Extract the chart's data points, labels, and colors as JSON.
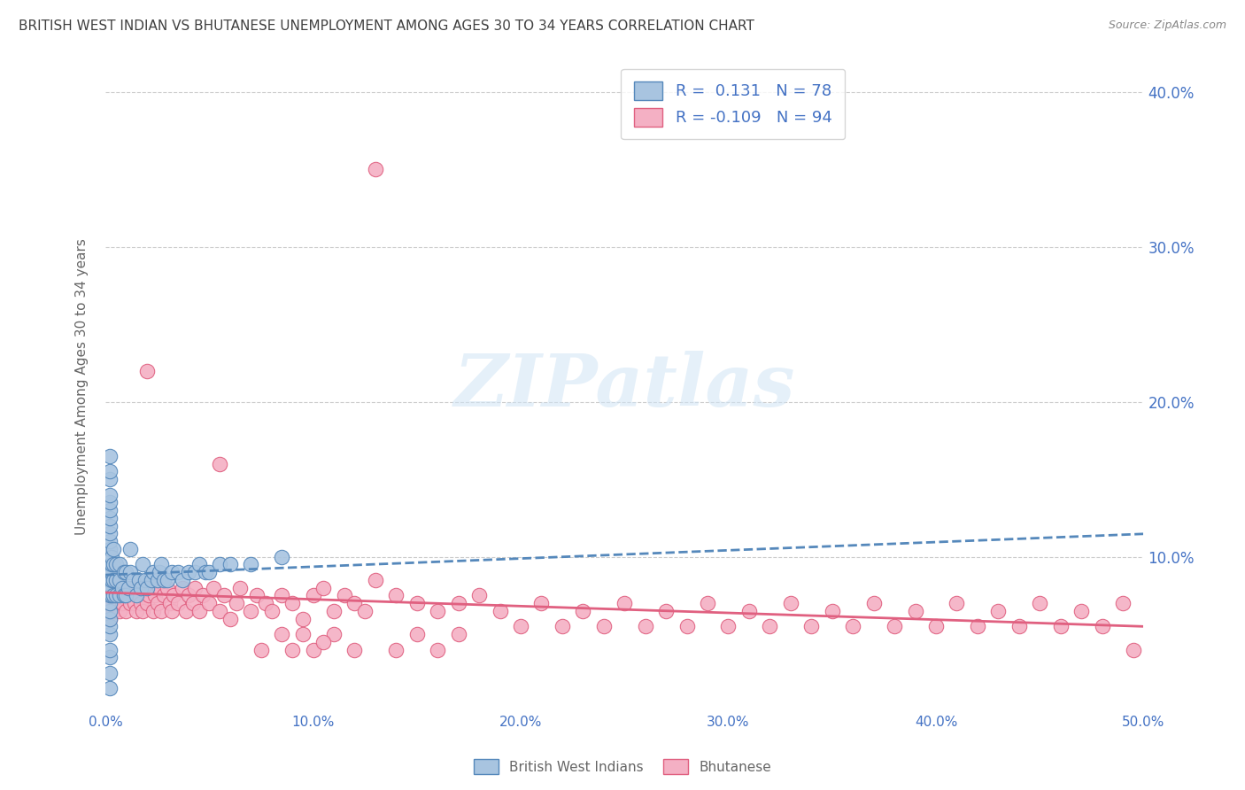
{
  "title": "BRITISH WEST INDIAN VS BHUTANESE UNEMPLOYMENT AMONG AGES 30 TO 34 YEARS CORRELATION CHART",
  "source": "Source: ZipAtlas.com",
  "ylabel": "Unemployment Among Ages 30 to 34 years",
  "xlim": [
    0,
    0.5
  ],
  "ylim": [
    0,
    0.42
  ],
  "xtick_vals": [
    0.0,
    0.1,
    0.2,
    0.3,
    0.4,
    0.5
  ],
  "xtick_labels": [
    "0.0%",
    "10.0%",
    "20.0%",
    "30.0%",
    "40.0%",
    "50.0%"
  ],
  "ytick_vals": [
    0.0,
    0.1,
    0.2,
    0.3,
    0.4
  ],
  "ytick_labels_right": [
    "",
    "10.0%",
    "20.0%",
    "30.0%",
    "40.0%"
  ],
  "bwi_color": "#a8c4e0",
  "bwi_edge_color": "#5588bb",
  "bhu_color": "#f4b0c4",
  "bhu_edge_color": "#e06080",
  "trend_bwi_color": "#5588bb",
  "trend_bhu_color": "#e06080",
  "axis_color": "#4472c4",
  "title_color": "#404040",
  "source_color": "#888888",
  "ylabel_color": "#666666",
  "watermark": "ZIPatlas",
  "legend_label_bwi": "British West Indians",
  "legend_label_bhu": "Bhutanese",
  "R_bwi": "0.131",
  "N_bwi": "78",
  "R_bhu": "-0.109",
  "N_bhu": "94",
  "bwi_scatter_x": [
    0.002,
    0.002,
    0.002,
    0.002,
    0.002,
    0.002,
    0.002,
    0.002,
    0.002,
    0.002,
    0.002,
    0.002,
    0.002,
    0.002,
    0.002,
    0.002,
    0.002,
    0.002,
    0.002,
    0.002,
    0.002,
    0.002,
    0.002,
    0.002,
    0.002,
    0.002,
    0.002,
    0.003,
    0.003,
    0.003,
    0.003,
    0.003,
    0.003,
    0.004,
    0.004,
    0.004,
    0.004,
    0.005,
    0.005,
    0.005,
    0.007,
    0.007,
    0.007,
    0.008,
    0.009,
    0.009,
    0.01,
    0.01,
    0.011,
    0.012,
    0.012,
    0.013,
    0.015,
    0.016,
    0.017,
    0.018,
    0.019,
    0.02,
    0.022,
    0.023,
    0.025,
    0.026,
    0.027,
    0.028,
    0.03,
    0.032,
    0.035,
    0.037,
    0.04,
    0.043,
    0.045,
    0.048,
    0.05,
    0.055,
    0.06,
    0.07,
    0.085
  ],
  "bwi_scatter_y": [
    0.015,
    0.025,
    0.035,
    0.04,
    0.05,
    0.055,
    0.06,
    0.065,
    0.07,
    0.075,
    0.08,
    0.08,
    0.085,
    0.09,
    0.095,
    0.1,
    0.105,
    0.11,
    0.115,
    0.12,
    0.125,
    0.13,
    0.135,
    0.14,
    0.15,
    0.155,
    0.165,
    0.075,
    0.08,
    0.085,
    0.09,
    0.095,
    0.1,
    0.075,
    0.085,
    0.095,
    0.105,
    0.075,
    0.085,
    0.095,
    0.075,
    0.085,
    0.095,
    0.08,
    0.075,
    0.09,
    0.075,
    0.09,
    0.08,
    0.09,
    0.105,
    0.085,
    0.075,
    0.085,
    0.08,
    0.095,
    0.085,
    0.08,
    0.085,
    0.09,
    0.085,
    0.09,
    0.095,
    0.085,
    0.085,
    0.09,
    0.09,
    0.085,
    0.09,
    0.09,
    0.095,
    0.09,
    0.09,
    0.095,
    0.095,
    0.095,
    0.1
  ],
  "bhu_scatter_x": [
    0.002,
    0.002,
    0.002,
    0.002,
    0.002,
    0.002,
    0.002,
    0.003,
    0.004,
    0.004,
    0.005,
    0.005,
    0.006,
    0.007,
    0.007,
    0.008,
    0.009,
    0.01,
    0.01,
    0.011,
    0.012,
    0.013,
    0.014,
    0.015,
    0.016,
    0.017,
    0.018,
    0.019,
    0.02,
    0.021,
    0.022,
    0.023,
    0.024,
    0.025,
    0.026,
    0.027,
    0.028,
    0.03,
    0.031,
    0.032,
    0.033,
    0.035,
    0.037,
    0.039,
    0.04,
    0.042,
    0.043,
    0.045,
    0.047,
    0.05,
    0.052,
    0.055,
    0.057,
    0.06,
    0.063,
    0.065,
    0.07,
    0.073,
    0.077,
    0.08,
    0.085,
    0.09,
    0.095,
    0.1,
    0.105,
    0.11,
    0.115,
    0.12,
    0.125,
    0.13,
    0.14,
    0.15,
    0.16,
    0.17,
    0.18,
    0.19,
    0.21,
    0.23,
    0.25,
    0.27,
    0.29,
    0.31,
    0.33,
    0.35,
    0.37,
    0.39,
    0.41,
    0.43,
    0.45,
    0.47,
    0.49,
    0.13,
    0.055,
    0.02
  ],
  "bhu_scatter_y": [
    0.06,
    0.07,
    0.075,
    0.08,
    0.085,
    0.09,
    0.095,
    0.07,
    0.065,
    0.08,
    0.07,
    0.085,
    0.075,
    0.065,
    0.08,
    0.07,
    0.08,
    0.065,
    0.08,
    0.075,
    0.07,
    0.08,
    0.07,
    0.065,
    0.075,
    0.07,
    0.065,
    0.08,
    0.07,
    0.075,
    0.08,
    0.065,
    0.075,
    0.07,
    0.08,
    0.065,
    0.075,
    0.08,
    0.07,
    0.065,
    0.075,
    0.07,
    0.08,
    0.065,
    0.075,
    0.07,
    0.08,
    0.065,
    0.075,
    0.07,
    0.08,
    0.065,
    0.075,
    0.06,
    0.07,
    0.08,
    0.065,
    0.075,
    0.07,
    0.065,
    0.075,
    0.07,
    0.06,
    0.075,
    0.08,
    0.065,
    0.075,
    0.07,
    0.065,
    0.085,
    0.075,
    0.07,
    0.065,
    0.07,
    0.075,
    0.065,
    0.07,
    0.065,
    0.07,
    0.065,
    0.07,
    0.065,
    0.07,
    0.065,
    0.07,
    0.065,
    0.07,
    0.065,
    0.07,
    0.065,
    0.07,
    0.35,
    0.16,
    0.22
  ],
  "bhu_extra_x": [
    0.075,
    0.085,
    0.09,
    0.1,
    0.11,
    0.12,
    0.095,
    0.105,
    0.14,
    0.15,
    0.16,
    0.17,
    0.2,
    0.22,
    0.24,
    0.26,
    0.28,
    0.3,
    0.32,
    0.34,
    0.36,
    0.38,
    0.4,
    0.42,
    0.44,
    0.46,
    0.48,
    0.495
  ],
  "bhu_extra_y": [
    0.04,
    0.05,
    0.04,
    0.04,
    0.05,
    0.04,
    0.05,
    0.045,
    0.04,
    0.05,
    0.04,
    0.05,
    0.055,
    0.055,
    0.055,
    0.055,
    0.055,
    0.055,
    0.055,
    0.055,
    0.055,
    0.055,
    0.055,
    0.055,
    0.055,
    0.055,
    0.055,
    0.04
  ]
}
